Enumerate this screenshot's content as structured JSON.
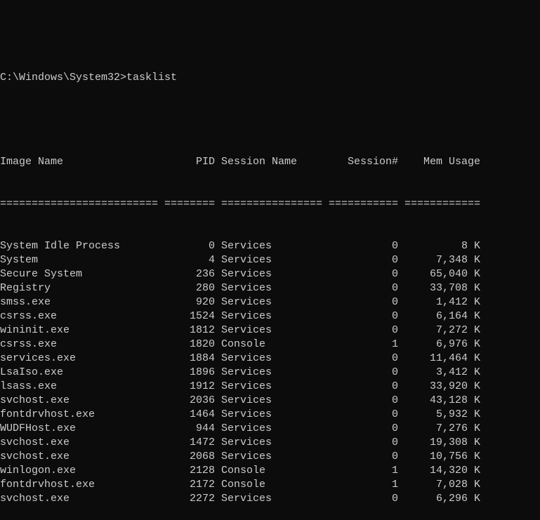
{
  "terminal": {
    "prompt": "C:\\Windows\\System32>",
    "command": "tasklist",
    "colors": {
      "background": "#0c0c0c",
      "text": "#cccccc"
    },
    "columns": [
      "Image Name",
      "PID",
      "Session Name",
      "Session#",
      "Mem Usage"
    ],
    "separators": [
      "=========================",
      "========",
      "================",
      "===========",
      "============"
    ],
    "rows": [
      [
        "System Idle Process",
        "0",
        "Services",
        "0",
        "8 K"
      ],
      [
        "System",
        "4",
        "Services",
        "0",
        "7,348 K"
      ],
      [
        "Secure System",
        "236",
        "Services",
        "0",
        "65,040 K"
      ],
      [
        "Registry",
        "280",
        "Services",
        "0",
        "33,708 K"
      ],
      [
        "smss.exe",
        "920",
        "Services",
        "0",
        "1,412 K"
      ],
      [
        "csrss.exe",
        "1524",
        "Services",
        "0",
        "6,164 K"
      ],
      [
        "wininit.exe",
        "1812",
        "Services",
        "0",
        "7,272 K"
      ],
      [
        "csrss.exe",
        "1820",
        "Console",
        "1",
        "6,976 K"
      ],
      [
        "services.exe",
        "1884",
        "Services",
        "0",
        "11,464 K"
      ],
      [
        "LsaIso.exe",
        "1896",
        "Services",
        "0",
        "3,412 K"
      ],
      [
        "lsass.exe",
        "1912",
        "Services",
        "0",
        "33,920 K"
      ],
      [
        "svchost.exe",
        "2036",
        "Services",
        "0",
        "43,128 K"
      ],
      [
        "fontdrvhost.exe",
        "1464",
        "Services",
        "0",
        "5,932 K"
      ],
      [
        "WUDFHost.exe",
        "944",
        "Services",
        "0",
        "7,276 K"
      ],
      [
        "svchost.exe",
        "1472",
        "Services",
        "0",
        "19,308 K"
      ],
      [
        "svchost.exe",
        "2068",
        "Services",
        "0",
        "10,756 K"
      ],
      [
        "winlogon.exe",
        "2128",
        "Console",
        "1",
        "14,320 K"
      ],
      [
        "fontdrvhost.exe",
        "2172",
        "Console",
        "1",
        "7,028 K"
      ],
      [
        "svchost.exe",
        "2272",
        "Services",
        "0",
        "6,296 K"
      ]
    ]
  }
}
